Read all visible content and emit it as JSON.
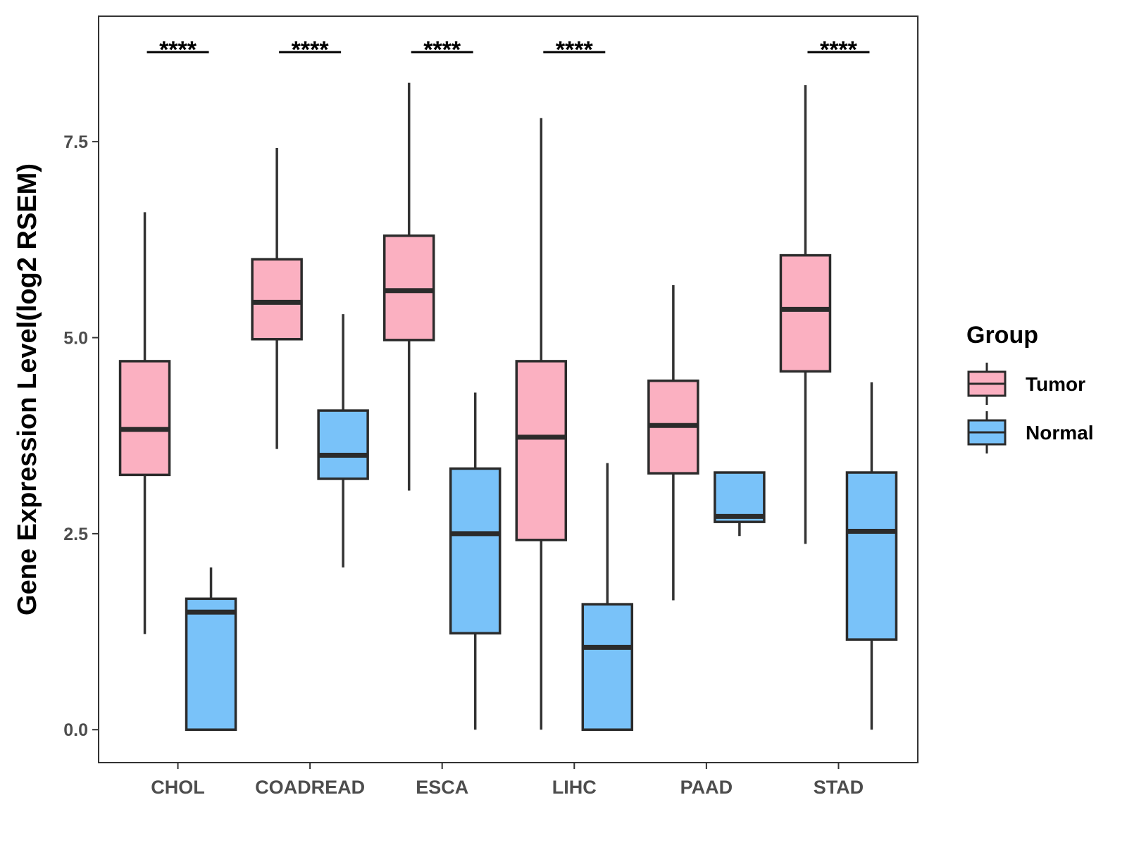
{
  "chart_data": {
    "type": "boxplot",
    "ylabel": "Gene Expression Level(log2 RSEM)",
    "xlabel": "",
    "ylim": [
      -0.42,
      9.1
    ],
    "yticks": [
      0.0,
      2.5,
      5.0,
      7.5
    ],
    "ytick_labels": [
      "0.0",
      "2.5",
      "5.0",
      "7.5"
    ],
    "categories": [
      "CHOL",
      "COADREAD",
      "ESCA",
      "LIHC",
      "PAAD",
      "STAD"
    ],
    "significance": [
      "****",
      "****",
      "****",
      "****",
      "",
      "****"
    ],
    "legend": {
      "title": "Group",
      "position": "right",
      "entries": [
        {
          "name": "Tumor",
          "color": "#FBB0C1"
        },
        {
          "name": "Normal",
          "color": "#79C2F9"
        }
      ]
    },
    "series": [
      {
        "name": "Tumor",
        "color": "#FBB0C1",
        "boxes": [
          {
            "min": 1.22,
            "q1": 3.25,
            "median": 3.83,
            "q3": 4.7,
            "max": 6.6
          },
          {
            "min": 3.58,
            "q1": 4.98,
            "median": 5.45,
            "q3": 6.0,
            "max": 7.42
          },
          {
            "min": 3.05,
            "q1": 4.97,
            "median": 5.6,
            "q3": 6.3,
            "max": 8.25
          },
          {
            "min": 0.0,
            "q1": 2.42,
            "median": 3.73,
            "q3": 4.7,
            "max": 7.8
          },
          {
            "min": 1.65,
            "q1": 3.27,
            "median": 3.88,
            "q3": 4.45,
            "max": 5.67
          },
          {
            "min": 2.37,
            "q1": 4.57,
            "median": 5.36,
            "q3": 6.05,
            "max": 8.22
          }
        ]
      },
      {
        "name": "Normal",
        "color": "#79C2F9",
        "boxes": [
          {
            "min": 0.0,
            "q1": 0.0,
            "median": 1.5,
            "q3": 1.67,
            "max": 2.07
          },
          {
            "min": 2.07,
            "q1": 3.2,
            "median": 3.5,
            "q3": 4.07,
            "max": 5.3
          },
          {
            "min": 0.0,
            "q1": 1.23,
            "median": 2.5,
            "q3": 3.33,
            "max": 4.3
          },
          {
            "min": 0.0,
            "q1": 0.0,
            "median": 1.05,
            "q3": 1.6,
            "max": 3.4
          },
          {
            "min": 2.47,
            "q1": 2.65,
            "median": 2.72,
            "q3": 3.28,
            "max": 3.28
          },
          {
            "min": 0.0,
            "q1": 1.15,
            "median": 2.53,
            "q3": 3.28,
            "max": 4.43
          }
        ]
      }
    ]
  }
}
